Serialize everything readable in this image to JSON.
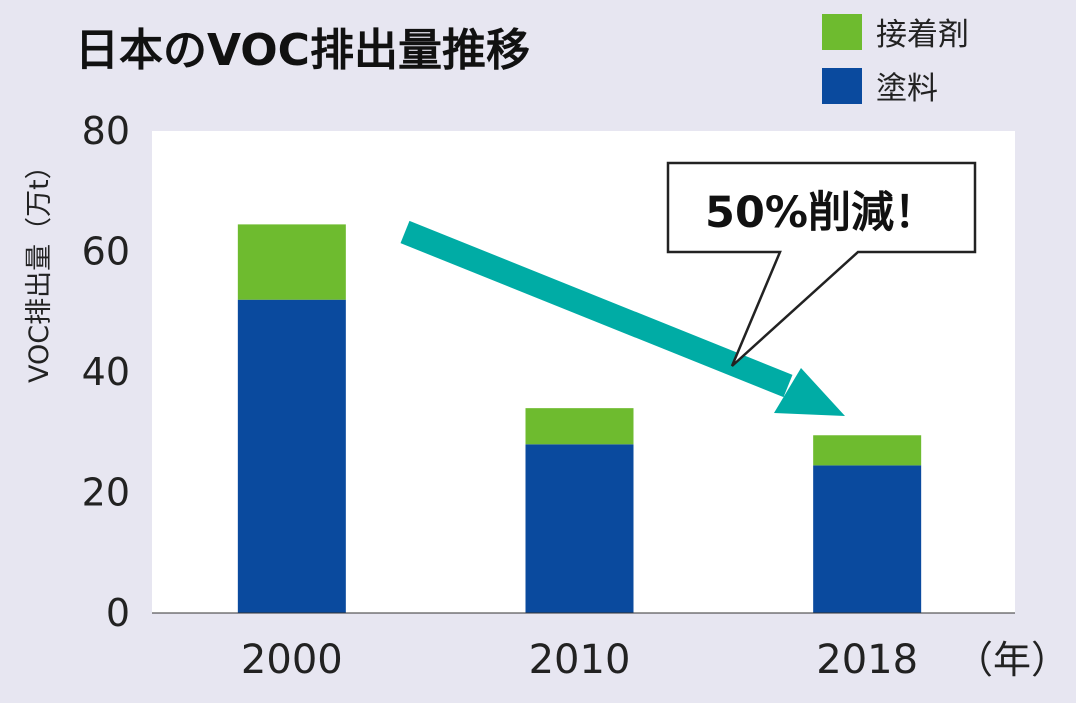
{
  "chart_data": {
    "type": "bar",
    "stacked": true,
    "title": "日本のVOC排出量推移",
    "ylabel": "VOC排出量（万t）",
    "x_unit": "（年）",
    "categories": [
      "2000",
      "2010",
      "2018"
    ],
    "series": [
      {
        "name": "塗料",
        "color": "#0A4A9E",
        "values": [
          52,
          28,
          24.5
        ]
      },
      {
        "name": "接着剤",
        "color": "#6EBB2F",
        "values": [
          12.5,
          6,
          5
        ]
      }
    ],
    "ylim": [
      0,
      80
    ],
    "yticks": [
      0,
      20,
      40,
      60,
      80
    ],
    "legend_position": "top-right",
    "grid": false,
    "annotation": {
      "text": "50%削減！",
      "arrow_color": "#00ACA5"
    },
    "plot_background": "#FFFFFF",
    "page_background": "#E7E6F1"
  }
}
